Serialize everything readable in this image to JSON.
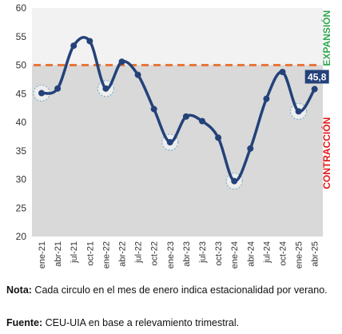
{
  "chart_data": {
    "type": "line",
    "title": "",
    "xlabel": "",
    "ylabel": "",
    "ylim": [
      20,
      60
    ],
    "yticks": [
      20,
      25,
      30,
      35,
      40,
      45,
      50,
      55,
      60
    ],
    "x_tick_labels": [
      "ene-21",
      "abr-21",
      "jul-21",
      "oct-21",
      "ene-22",
      "abr-22",
      "jul-22",
      "oct-22",
      "ene-23",
      "abr-23",
      "jul-23",
      "oct-23",
      "ene-24",
      "abr-24",
      "jul-24",
      "oct-24",
      "ene-25",
      "abr-25"
    ],
    "series": [
      {
        "values": [
          45.1,
          45.9,
          53.4,
          54.2,
          45.9,
          50.6,
          48.3,
          42.3,
          36.5,
          41.0,
          40.2,
          37.3,
          29.7,
          35.4,
          44.1,
          48.8,
          41.9,
          45.8
        ],
        "color": "#24427a"
      }
    ],
    "reference_line": {
      "value": 50,
      "color": "#e8763a",
      "style": "dashed"
    },
    "regions": {
      "upper": {
        "label": "EXPANSIÓN",
        "color": "#2ea64e",
        "background": "#f2f2f2"
      },
      "lower": {
        "label": "CONTRACCIÓN",
        "color": "#e0191b",
        "background": "#d9d9d9"
      }
    },
    "circled_points": [
      "ene-21",
      "ene-22",
      "ene-23",
      "ene-24",
      "ene-25"
    ],
    "last_value_label": "45,8",
    "grid": false,
    "legend": "none"
  },
  "notes": {
    "note_label": "Nota:",
    "note_text": " Cada circulo en el mes de enero indica estacionalidad por verano.",
    "source_label": "Fuente:",
    "source_text": " CEU-UIA en base a relevamiento trimestral."
  }
}
